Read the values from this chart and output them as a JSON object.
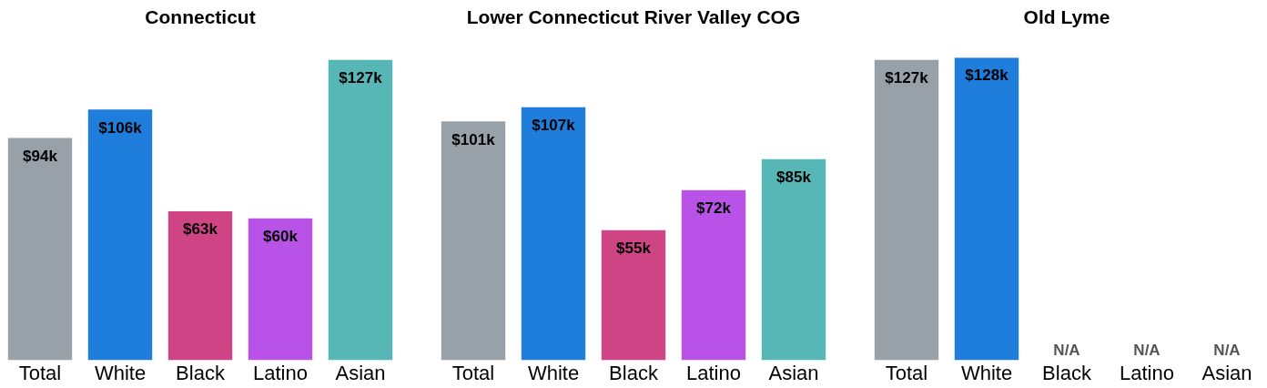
{
  "chart_data": [
    {
      "type": "bar",
      "title": "Connecticut",
      "categories": [
        "Total",
        "White",
        "Black",
        "Latino",
        "Asian"
      ],
      "values": [
        94,
        106,
        63,
        60,
        127
      ],
      "value_labels": [
        "$94k",
        "$106k",
        "$63k",
        "$60k",
        "$127k"
      ],
      "colors": [
        "#98a0a8",
        "#1f7ddb",
        "#cf4484",
        "#b953e8",
        "#56b7b6"
      ],
      "tick_labels": "x",
      "grid": false,
      "legend": false
    },
    {
      "type": "bar",
      "title": "Lower Connecticut River Valley COG",
      "categories": [
        "Total",
        "White",
        "Black",
        "Latino",
        "Asian"
      ],
      "values": [
        101,
        107,
        55,
        72,
        85
      ],
      "value_labels": [
        "$101k",
        "$107k",
        "$55k",
        "$72k",
        "$85k"
      ],
      "colors": [
        "#98a0a8",
        "#1f7ddb",
        "#cf4484",
        "#b953e8",
        "#56b7b6"
      ],
      "tick_labels": "x",
      "grid": false,
      "legend": false
    },
    {
      "type": "bar",
      "title": "Old Lyme",
      "categories": [
        "Total",
        "White",
        "Black",
        "Latino",
        "Asian"
      ],
      "values": [
        127,
        128,
        null,
        null,
        null
      ],
      "value_labels": [
        "$127k",
        "$128k",
        "N/A",
        "N/A",
        "N/A"
      ],
      "colors": [
        "#98a0a8",
        "#1f7ddb",
        "#cf4484",
        "#b953e8",
        "#56b7b6"
      ],
      "tick_labels": "x",
      "grid": false,
      "legend": false
    }
  ]
}
